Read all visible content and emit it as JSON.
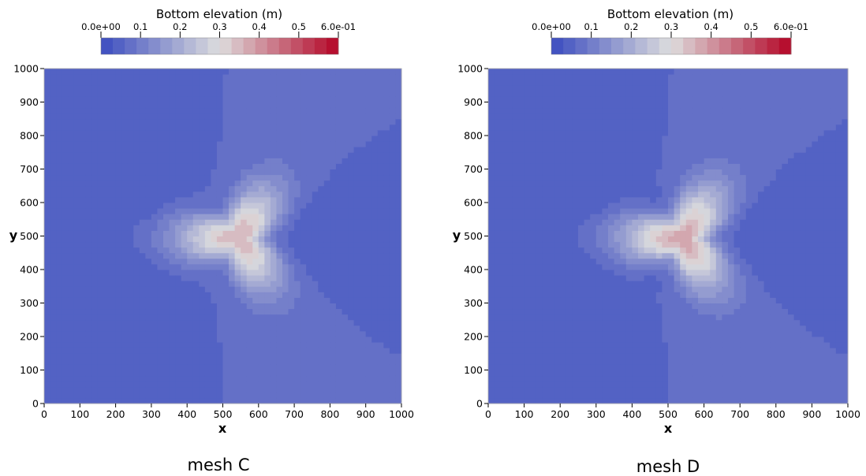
{
  "chart_data": [
    {
      "type": "heatmap",
      "caption": "mesh C",
      "colorbar": {
        "title": "Bottom elevation (m)",
        "range": [
          0,
          0.6
        ],
        "tick_labels": [
          "0.0e+00",
          "0.1",
          "0.2",
          "0.3",
          "0.4",
          "0.5",
          "6.0e-01"
        ],
        "tick_values": [
          0,
          0.1,
          0.2,
          0.3,
          0.4,
          0.5,
          0.6
        ],
        "bands": 20,
        "colormap_stops": [
          "#3b4cc0",
          "#dddddd",
          "#b40426"
        ]
      },
      "xlabel": "x",
      "ylabel": "y",
      "xlim": [
        0,
        1000
      ],
      "ylim": [
        0,
        1000
      ],
      "xticks": [
        0,
        100,
        200,
        300,
        400,
        500,
        600,
        700,
        800,
        900,
        1000
      ],
      "yticks": [
        0,
        100,
        200,
        300,
        400,
        500,
        600,
        700,
        800,
        900,
        1000
      ],
      "background_value": 0.06,
      "features": {
        "peak": {
          "x": 545,
          "y": 495,
          "value": 0.36
        },
        "lobes": [
          {
            "x": 240,
            "y": 640,
            "value": 0.03
          },
          {
            "x": 240,
            "y": 355,
            "value": 0.03
          },
          {
            "x": 825,
            "y": 495,
            "value": 0.03
          }
        ]
      }
    },
    {
      "type": "heatmap",
      "caption": "mesh D",
      "colorbar": {
        "title": "Bottom elevation (m)",
        "range": [
          0,
          0.6
        ],
        "tick_labels": [
          "0.0e+00",
          "0.1",
          "0.2",
          "0.3",
          "0.4",
          "0.5",
          "6.0e-01"
        ],
        "tick_values": [
          0,
          0.1,
          0.2,
          0.3,
          0.4,
          0.5,
          0.6
        ],
        "bands": 20,
        "colormap_stops": [
          "#3b4cc0",
          "#dddddd",
          "#b40426"
        ]
      },
      "xlabel": "x",
      "ylabel": "y",
      "xlim": [
        0,
        1000
      ],
      "ylim": [
        0,
        1000
      ],
      "xticks": [
        0,
        100,
        200,
        300,
        400,
        500,
        600,
        700,
        800,
        900,
        1000
      ],
      "yticks": [
        0,
        100,
        200,
        300,
        400,
        500,
        600,
        700,
        800,
        900,
        1000
      ],
      "background_value": 0.06,
      "features": {
        "peak": {
          "x": 545,
          "y": 495,
          "value": 0.38
        },
        "lobes": [
          {
            "x": 240,
            "y": 640,
            "value": 0.03
          },
          {
            "x": 240,
            "y": 355,
            "value": 0.03
          },
          {
            "x": 825,
            "y": 495,
            "value": 0.03
          }
        ],
        "minima": [
          {
            "x": 455,
            "y": 625,
            "value": 0.0
          },
          {
            "x": 455,
            "y": 365,
            "value": 0.0
          }
        ]
      }
    }
  ]
}
